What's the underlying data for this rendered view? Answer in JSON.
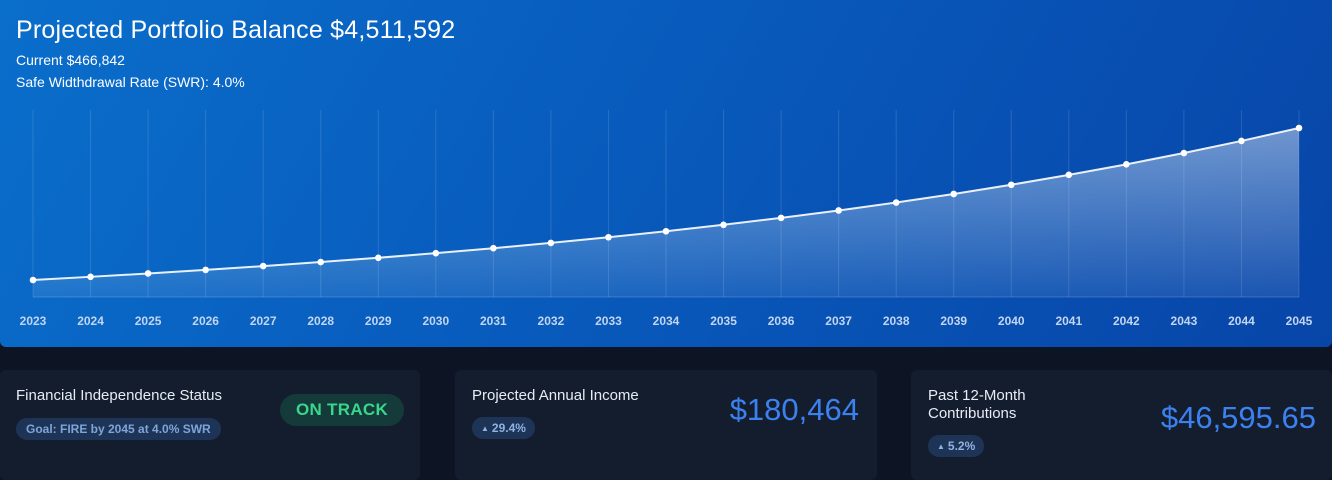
{
  "hero": {
    "title": "Projected Portfolio Balance $4,511,592",
    "current": "Current $466,842",
    "swr": "Safe Widthdrawal Rate (SWR): 4.0%"
  },
  "chart_data": {
    "type": "area",
    "x": [
      "2023",
      "2024",
      "2025",
      "2026",
      "2027",
      "2028",
      "2029",
      "2030",
      "2031",
      "2032",
      "2033",
      "2034",
      "2035",
      "2036",
      "2037",
      "2038",
      "2039",
      "2040",
      "2041",
      "2042",
      "2043",
      "2044",
      "2045"
    ],
    "values": [
      466842,
      605000,
      750000,
      905000,
      1070000,
      1245000,
      1430000,
      1630000,
      1845000,
      2075000,
      2320000,
      2580000,
      2860000,
      3160000,
      3480000,
      3825000,
      4195000,
      4595000,
      5025000,
      5480000,
      5970000,
      6495000,
      7055000
    ],
    "title": "Projected Portfolio Balance $4,511,592",
    "xlabel": "",
    "ylabel": "",
    "grid": "vertical",
    "line_color": "#ffffff",
    "fill_color": "#ffffff"
  },
  "cards": {
    "fi_status": {
      "title": "Financial Independence Status",
      "goal": "Goal: FIRE by 2045 at 4.0% SWR",
      "status": "ON TRACK",
      "status_color": "#39d68c"
    },
    "annual_income": {
      "title": "Projected Annual Income",
      "value": "$180,464",
      "delta": "29.4%",
      "arrow_icon": "triangle-up-icon"
    },
    "contributions": {
      "title_line1": "Past 12-Month",
      "title_line2": "Contributions",
      "value": "$46,595.65",
      "delta": "5.2%",
      "arrow_icon": "triangle-up-icon"
    }
  },
  "colors": {
    "hero_bg": "#0a62c4",
    "page_bg": "#0d1424",
    "card_bg": "#141d2e",
    "accent": "#3b82f0"
  }
}
